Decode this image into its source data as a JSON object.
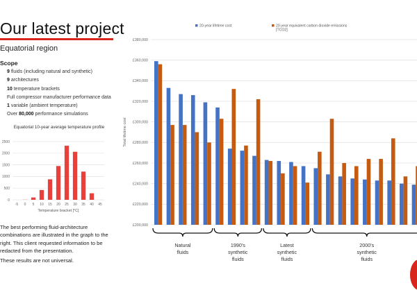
{
  "header": {
    "title": "Our latest project",
    "subtitle": "Equatorial region"
  },
  "scope": {
    "heading": "Scope",
    "items": [
      {
        "bold": "9",
        "text": " fluids (including natural and synthetic)"
      },
      {
        "bold": "9",
        "text": " architectures"
      },
      {
        "bold": "10",
        "text": " temperature brackets"
      },
      {
        "bold": "",
        "text": "Full compressor manufacturer performance data"
      },
      {
        "bold": "1",
        "text": " variable (ambient temperature)"
      },
      {
        "bold": "80,000",
        "prefix": "Over ",
        "text": " performance simulations"
      }
    ]
  },
  "body_text": {
    "paragraph1": "The best performing fluid-architecture combinations are illustrated in the graph to the right. This client requested information to be redacted from the presentation.",
    "paragraph2": "These results are not universal."
  },
  "colors": {
    "accent": "#d9261c",
    "blue": "#4472c4",
    "orange": "#c55a11"
  },
  "chart_data": [
    {
      "type": "bar",
      "title": "Equatorial 10-year average temperature profile",
      "xlabel": "Temperature bracket [°C]",
      "ylabel": "",
      "categories": [
        "-5",
        "0",
        "5",
        "10",
        "15",
        "20",
        "25",
        "30",
        "35",
        "40",
        "45"
      ],
      "values": [
        0,
        5,
        100,
        420,
        880,
        1450,
        2320,
        2060,
        1210,
        280,
        0
      ],
      "yticks": [
        "0",
        "500",
        "1000",
        "1500",
        "2000",
        "2500"
      ],
      "ylim": [
        0,
        2500
      ],
      "grid": true,
      "color": "#e8413b"
    },
    {
      "type": "bar",
      "title": "",
      "xlabel": "",
      "ylabel": "Total lifetime cost",
      "ylim": [
        200000,
        380000
      ],
      "yticks": [
        "£200,000",
        "£220,000",
        "£240,000",
        "£260,000",
        "£280,000",
        "£300,000",
        "£320,000",
        "£340,000",
        "£360,000",
        "£380,000"
      ],
      "grid": true,
      "legend_position": "top",
      "series": [
        {
          "name": "20-year lifetime cost",
          "color": "#4472c4",
          "values": [
            359000,
            333000,
            327000,
            326000,
            319000,
            314000,
            274000,
            272000,
            267000,
            263000,
            262000,
            261000,
            257000,
            255000,
            249000,
            247000,
            245000,
            244000,
            243000,
            243000,
            240000,
            239000
          ]
        },
        {
          "name": "20-year equivalent carbon dioxide emissions [TCO2]",
          "color": "#c55a11",
          "values": [
            356000,
            297000,
            297000,
            290000,
            280000,
            303000,
            332000,
            277000,
            322000,
            262000,
            250000,
            257000,
            241000,
            271000,
            303000,
            260000,
            257000,
            264000,
            264000,
            284000,
            247000,
            257000
          ]
        }
      ],
      "groups": [
        {
          "label": "Natural fluids",
          "lines": [
            "Natural",
            "fluids"
          ],
          "start": 1,
          "end": 5
        },
        {
          "label": "1990's synthetic fluids",
          "lines": [
            "1990's",
            "synthetic",
            "fluids"
          ],
          "start": 6,
          "end": 9
        },
        {
          "label": "Latest synthetic fluids",
          "lines": [
            "Latest",
            "synthetic",
            "fluids"
          ],
          "start": 10,
          "end": 13
        },
        {
          "label": "2000's synthetic fluids",
          "lines": [
            "2000's",
            "synthetic",
            "fluids"
          ],
          "start": 14,
          "end": 22
        }
      ]
    }
  ]
}
